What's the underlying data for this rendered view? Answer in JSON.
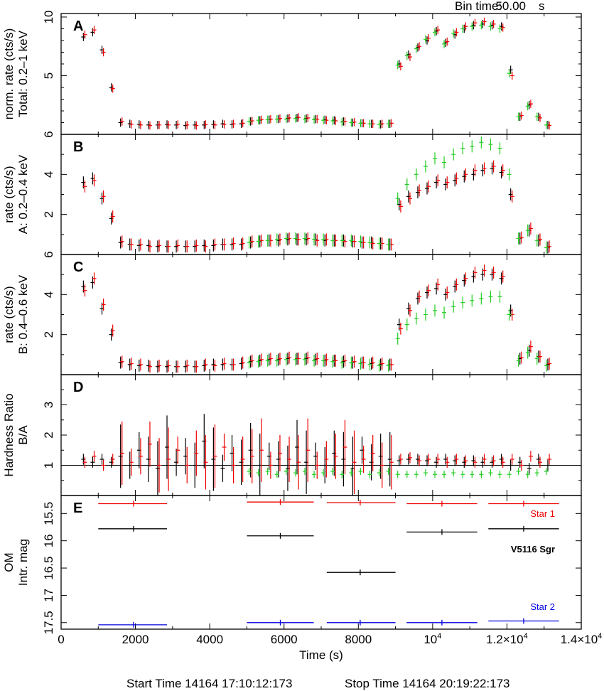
{
  "header": {
    "bin_time_label": "Bin time:",
    "bin_time_value": "50.00",
    "bin_time_unit": "s"
  },
  "footer": {
    "start": "Start Time 14164 17:10:12:173",
    "stop": "Stop Time 14164 20:19:22:173"
  },
  "colors": {
    "black": "#000000",
    "red": "#ee0000",
    "green": "#22cc22",
    "blue": "#0000dd"
  },
  "chart_data": {
    "type": "scatter",
    "xlabel": "Time (s)",
    "xlim": [
      0,
      14000
    ],
    "x_ticks": [
      {
        "v": 0,
        "base": "0"
      },
      {
        "v": 2000,
        "base": "2000"
      },
      {
        "v": 4000,
        "base": "4000"
      },
      {
        "v": 6000,
        "base": "6000"
      },
      {
        "v": 8000,
        "base": "8000"
      },
      {
        "v": 10000,
        "base": "10",
        "sup": "4"
      },
      {
        "v": 12000,
        "base": "1.2×10",
        "sup": "4"
      },
      {
        "v": 14000,
        "base": "1.4×10",
        "sup": "4"
      }
    ],
    "x": [
      600,
      850,
      1100,
      1350,
      1600,
      1850,
      2100,
      2350,
      2600,
      2850,
      3100,
      3350,
      3600,
      3850,
      4100,
      4350,
      4600,
      4850,
      5100,
      5350,
      5600,
      5850,
      6100,
      6350,
      6600,
      6850,
      7100,
      7350,
      7600,
      7850,
      8100,
      8350,
      8600,
      8850,
      9100,
      9350,
      9600,
      9850,
      10100,
      10350,
      10600,
      10850,
      11100,
      11350,
      11600,
      11850,
      12100,
      12350,
      12600,
      12850,
      13100
    ],
    "green_start_index": 18,
    "panels": [
      {
        "letter": "A",
        "ylabel": [
          "norm. rate (cts/s)",
          "Total: 0.2–1 keV"
        ],
        "ylim": [
          0,
          10.3
        ],
        "y_ticks": [
          {
            "v": 5,
            "label": "5"
          },
          {
            "v": 10,
            "label": "10"
          }
        ],
        "minor": [
          1,
          2,
          3,
          4,
          6,
          7,
          8,
          9
        ],
        "err": 0.35,
        "series": [
          {
            "name": "black",
            "color": "#000000",
            "values": [
              8.3,
              8.7,
              7.2,
              4.0,
              1.0,
              0.9,
              0.85,
              0.8,
              0.8,
              0.85,
              0.8,
              0.75,
              0.8,
              0.8,
              0.85,
              0.9,
              0.85,
              0.9,
              1.1,
              1.2,
              1.25,
              1.3,
              1.35,
              1.4,
              1.35,
              1.3,
              1.25,
              1.2,
              1.1,
              1.0,
              0.95,
              0.9,
              0.85,
              0.9,
              6.0,
              6.8,
              7.4,
              8.0,
              8.8,
              7.8,
              8.5,
              9.0,
              9.3,
              9.4,
              9.3,
              9.2,
              5.5,
              1.5,
              2.5,
              1.5,
              0.8
            ]
          },
          {
            "name": "red",
            "color": "#ee0000",
            "values": [
              8.5,
              8.9,
              7.0,
              3.9,
              1.1,
              0.85,
              0.8,
              0.75,
              0.8,
              0.8,
              0.85,
              0.8,
              0.75,
              0.85,
              0.8,
              0.85,
              0.9,
              0.95,
              1.15,
              1.25,
              1.3,
              1.35,
              1.4,
              1.45,
              1.4,
              1.3,
              1.2,
              1.15,
              1.1,
              1.05,
              0.95,
              0.9,
              0.9,
              0.95,
              5.8,
              6.6,
              7.5,
              8.2,
              8.9,
              7.9,
              8.7,
              9.2,
              9.5,
              9.6,
              9.4,
              9.1,
              5.0,
              1.6,
              2.6,
              1.4,
              0.75
            ]
          },
          {
            "name": "green",
            "color": "#22cc22",
            "values": [
              1.1,
              1.2,
              1.25,
              1.3,
              1.3,
              1.35,
              1.3,
              1.25,
              1.2,
              1.15,
              1.05,
              1.0,
              0.95,
              0.9,
              0.85,
              0.9,
              5.9,
              6.7,
              7.3,
              8.1,
              8.7,
              7.7,
              8.6,
              9.0,
              9.2,
              9.3,
              9.2,
              9.0,
              5.2,
              1.5,
              2.4,
              1.5,
              0.8
            ]
          }
        ]
      },
      {
        "letter": "B",
        "ylabel": [
          "rate (cts/s)",
          "A: 0.2–0.4 keV"
        ],
        "ylim": [
          0,
          6
        ],
        "y_ticks": [
          {
            "v": 2,
            "label": "2"
          },
          {
            "v": 4,
            "label": "4"
          },
          {
            "v": 6,
            "label": "6"
          }
        ],
        "minor": [
          1,
          3,
          5
        ],
        "err": 0.3,
        "series": [
          {
            "name": "black",
            "color": "#000000",
            "values": [
              3.6,
              3.8,
              2.8,
              1.8,
              0.6,
              0.5,
              0.45,
              0.45,
              0.4,
              0.4,
              0.4,
              0.4,
              0.4,
              0.45,
              0.45,
              0.5,
              0.5,
              0.5,
              0.6,
              0.65,
              0.7,
              0.7,
              0.75,
              0.75,
              0.75,
              0.75,
              0.7,
              0.7,
              0.7,
              0.65,
              0.6,
              0.6,
              0.55,
              0.5,
              2.5,
              2.9,
              3.1,
              3.3,
              3.6,
              3.5,
              3.7,
              3.9,
              4.0,
              4.2,
              4.3,
              4.1,
              3.0,
              0.8,
              1.2,
              0.7,
              0.35
            ]
          },
          {
            "name": "red",
            "color": "#ee0000",
            "values": [
              3.4,
              3.7,
              2.9,
              1.9,
              0.65,
              0.5,
              0.5,
              0.4,
              0.45,
              0.4,
              0.45,
              0.4,
              0.45,
              0.4,
              0.5,
              0.5,
              0.55,
              0.55,
              0.65,
              0.7,
              0.7,
              0.75,
              0.8,
              0.75,
              0.8,
              0.7,
              0.75,
              0.7,
              0.65,
              0.65,
              0.6,
              0.55,
              0.55,
              0.5,
              2.4,
              2.8,
              3.2,
              3.4,
              3.7,
              3.6,
              3.8,
              4.0,
              4.2,
              4.3,
              4.4,
              4.2,
              2.9,
              0.85,
              1.3,
              0.75,
              0.4
            ]
          },
          {
            "name": "green",
            "color": "#22cc22",
            "values": [
              0.6,
              0.65,
              0.7,
              0.75,
              0.8,
              0.8,
              0.8,
              0.75,
              0.75,
              0.7,
              0.7,
              0.7,
              0.65,
              0.6,
              0.55,
              0.5,
              2.8,
              3.5,
              4.0,
              4.4,
              4.8,
              4.6,
              5.0,
              5.3,
              5.4,
              5.6,
              5.5,
              5.3,
              4.0,
              0.8,
              1.2,
              0.7,
              0.35
            ]
          }
        ]
      },
      {
        "letter": "C",
        "ylabel": [
          "rate (cts/s)",
          "B: 0.4–0.6 keV"
        ],
        "ylim": [
          0,
          6
        ],
        "y_ticks": [
          {
            "v": 2,
            "label": "2"
          },
          {
            "v": 4,
            "label": "4"
          },
          {
            "v": 6,
            "label": "6"
          }
        ],
        "minor": [
          1,
          3,
          5
        ],
        "err": 0.3,
        "series": [
          {
            "name": "black",
            "color": "#000000",
            "values": [
              4.4,
              4.6,
              3.3,
              2.0,
              0.6,
              0.5,
              0.45,
              0.45,
              0.4,
              0.4,
              0.4,
              0.4,
              0.4,
              0.45,
              0.5,
              0.5,
              0.5,
              0.55,
              0.65,
              0.7,
              0.75,
              0.75,
              0.8,
              0.8,
              0.8,
              0.75,
              0.7,
              0.7,
              0.65,
              0.6,
              0.6,
              0.55,
              0.5,
              0.5,
              2.5,
              3.3,
              3.8,
              4.1,
              4.3,
              4.0,
              4.4,
              4.7,
              4.9,
              5.0,
              5.0,
              4.8,
              3.2,
              0.8,
              1.2,
              0.9,
              0.5
            ]
          },
          {
            "name": "red",
            "color": "#ee0000",
            "values": [
              4.2,
              4.8,
              3.5,
              2.2,
              0.65,
              0.55,
              0.5,
              0.4,
              0.45,
              0.45,
              0.4,
              0.45,
              0.4,
              0.5,
              0.45,
              0.55,
              0.5,
              0.6,
              0.7,
              0.75,
              0.8,
              0.8,
              0.85,
              0.8,
              0.85,
              0.8,
              0.75,
              0.7,
              0.7,
              0.65,
              0.6,
              0.6,
              0.55,
              0.5,
              2.3,
              3.2,
              3.9,
              4.2,
              4.5,
              4.1,
              4.5,
              4.8,
              5.1,
              5.2,
              5.1,
              4.9,
              3.0,
              0.85,
              1.4,
              0.9,
              0.55
            ]
          },
          {
            "name": "green",
            "color": "#22cc22",
            "values": [
              0.6,
              0.65,
              0.7,
              0.7,
              0.75,
              0.75,
              0.75,
              0.7,
              0.7,
              0.65,
              0.6,
              0.6,
              0.55,
              0.5,
              0.45,
              0.45,
              1.8,
              2.5,
              2.8,
              3.0,
              3.2,
              3.1,
              3.4,
              3.6,
              3.7,
              3.8,
              3.9,
              3.9,
              3.0,
              0.7,
              1.1,
              0.8,
              0.45
            ]
          }
        ]
      },
      {
        "letter": "D",
        "ylabel": [
          "Hardness Ratio",
          "B/A"
        ],
        "ylim": [
          0,
          4.0
        ],
        "y_ticks": [
          {
            "v": 1,
            "label": "1"
          },
          {
            "v": 2,
            "label": "2"
          },
          {
            "v": 3,
            "label": "3"
          }
        ],
        "minor": [
          0.5,
          1.5,
          2.5,
          3.5
        ],
        "err_profile": "large",
        "reference_line": 1,
        "series": [
          {
            "name": "black",
            "color": "#000000",
            "values": [
              1.2,
              1.1,
              1.2,
              1.1,
              1.3,
              1.0,
              1.5,
              1.2,
              0.9,
              1.6,
              1.1,
              1.3,
              1.0,
              1.8,
              1.2,
              0.9,
              1.4,
              1.1,
              1.5,
              1.0,
              1.3,
              1.2,
              0.9,
              1.6,
              1.1,
              1.3,
              1.0,
              1.4,
              1.2,
              0.9,
              1.5,
              1.1,
              1.3,
              1.2,
              1.15,
              1.2,
              1.2,
              1.15,
              1.1,
              1.2,
              1.15,
              1.1,
              1.15,
              1.1,
              1.1,
              1.2,
              1.0,
              1.1,
              0.9,
              1.2,
              1.0
            ]
          },
          {
            "name": "red",
            "color": "#ee0000",
            "values": [
              1.1,
              1.3,
              1.0,
              1.2,
              1.4,
              1.1,
              1.3,
              1.7,
              1.0,
              1.2,
              1.5,
              1.0,
              1.4,
              1.1,
              1.3,
              1.6,
              1.0,
              1.2,
              1.3,
              1.5,
              1.0,
              1.4,
              1.2,
              1.1,
              1.5,
              1.0,
              1.2,
              1.3,
              1.6,
              1.1,
              1.2,
              1.4,
              1.0,
              1.1,
              1.2,
              1.25,
              1.15,
              1.2,
              1.2,
              1.1,
              1.2,
              1.15,
              1.1,
              1.2,
              1.15,
              1.1,
              1.2,
              1.0,
              1.3,
              1.1,
              1.2
            ]
          },
          {
            "name": "green",
            "color": "#22cc22",
            "values": [
              0.8,
              0.75,
              0.8,
              0.7,
              0.8,
              0.75,
              0.8,
              0.7,
              0.75,
              0.8,
              0.7,
              0.75,
              0.8,
              0.7,
              0.75,
              0.8,
              0.7,
              0.7,
              0.7,
              0.75,
              0.7,
              0.7,
              0.75,
              0.7,
              0.7,
              0.7,
              0.75,
              0.7,
              0.7,
              0.8,
              0.7,
              0.75,
              0.8
            ]
          }
        ]
      }
    ],
    "om_panel": {
      "letter": "E",
      "ylabel": [
        "OM",
        "Intr. mag"
      ],
      "ylim_inverted": [
        15.17,
        17.62
      ],
      "y_ticks": [
        {
          "v": 15.5,
          "label": "15.5"
        },
        {
          "v": 16,
          "label": "16"
        },
        {
          "v": 16.5,
          "label": "16.5"
        },
        {
          "v": 17,
          "label": "17"
        },
        {
          "v": 17.5,
          "label": "17.5"
        }
      ],
      "series": [
        {
          "name": "Star 1",
          "color": "#ee0000",
          "segments": [
            [
              1000,
              2850,
              1950,
              15.32
            ],
            [
              5000,
              6800,
              5900,
              15.29
            ],
            [
              7150,
              9000,
              8050,
              15.3
            ],
            [
              9300,
              11200,
              10250,
              15.32
            ],
            [
              11500,
              13400,
              12450,
              15.32
            ]
          ]
        },
        {
          "name": "V5116 Sgr",
          "color": "#000000",
          "segments": [
            [
              1000,
              2850,
              1950,
              15.78
            ],
            [
              5000,
              6800,
              5900,
              15.91
            ],
            [
              7150,
              9000,
              8050,
              16.58
            ],
            [
              9300,
              11200,
              10250,
              15.84
            ],
            [
              11500,
              13400,
              12450,
              15.78
            ]
          ]
        },
        {
          "name": "Star 2",
          "color": "#0000dd",
          "segments": [
            [
              1000,
              2850,
              1950,
              17.54
            ],
            [
              5000,
              6800,
              5900,
              17.5
            ],
            [
              7150,
              9000,
              8050,
              17.5
            ],
            [
              9300,
              11200,
              10250,
              17.5
            ],
            [
              11500,
              13400,
              12450,
              17.47
            ]
          ]
        }
      ]
    }
  }
}
